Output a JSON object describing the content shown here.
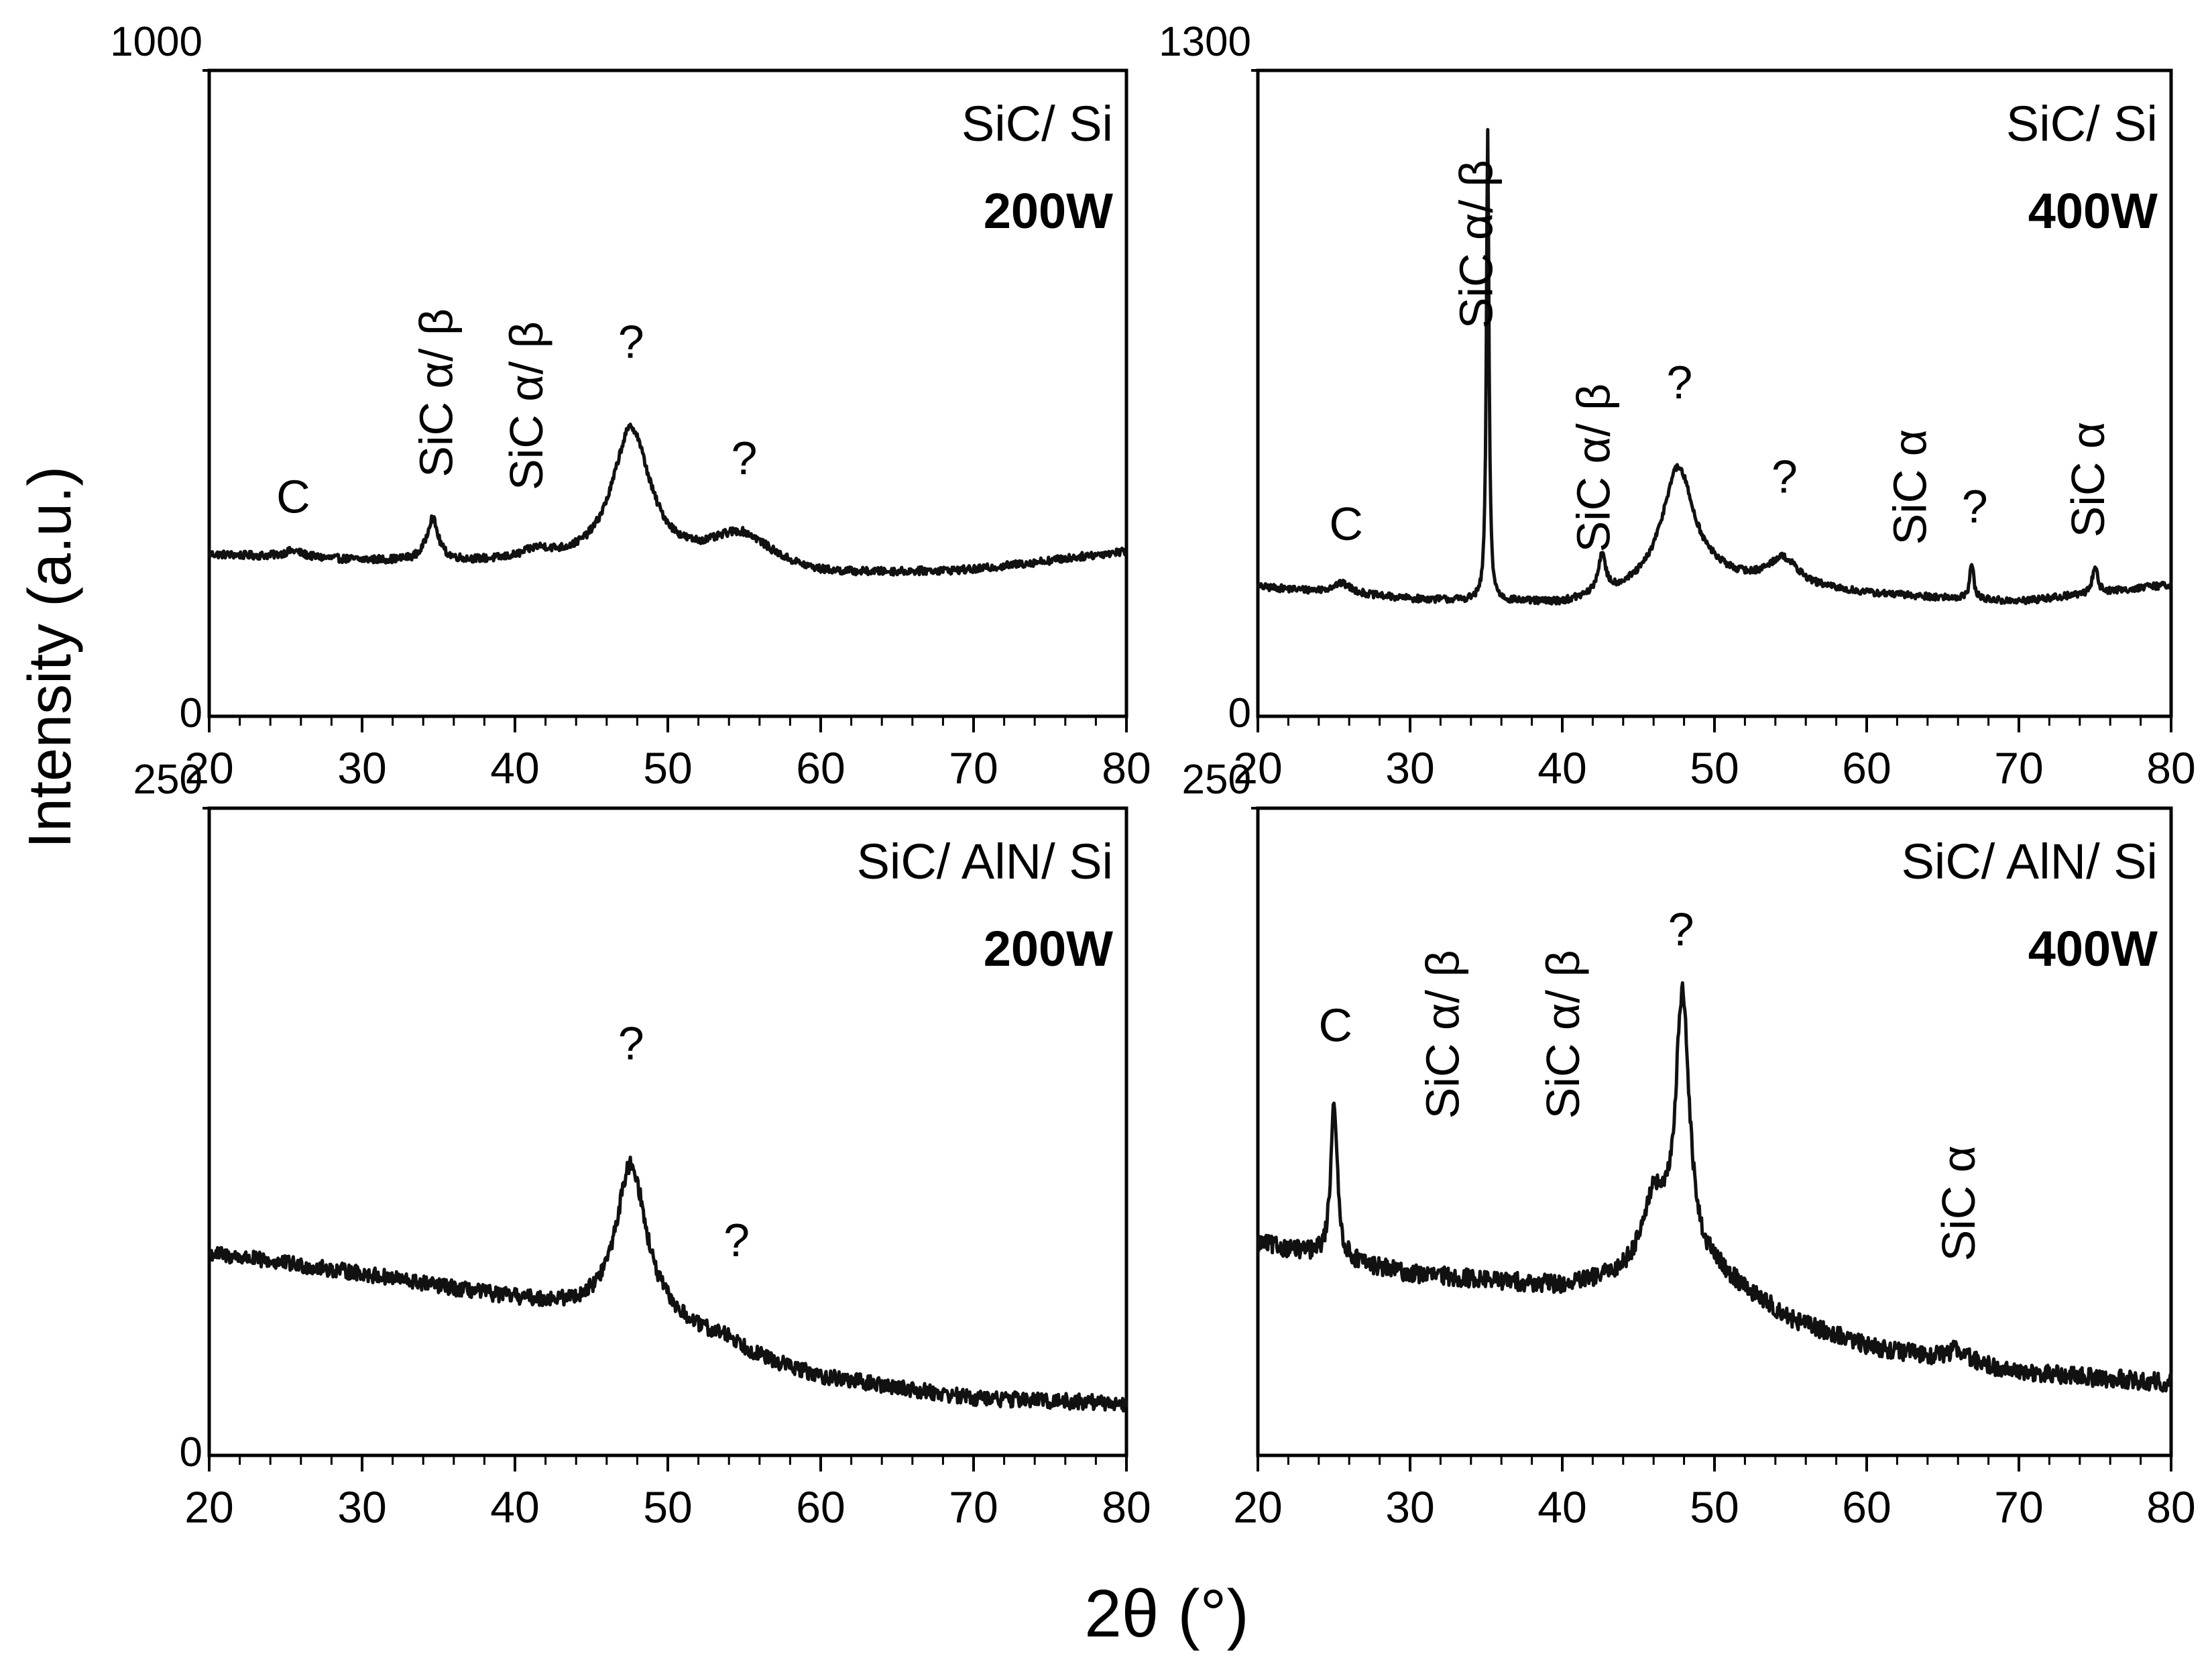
{
  "figure": {
    "ylabel": "Intensity (a.u.)",
    "xlabel": "2θ (°)"
  },
  "chart_data": [
    {
      "type": "line",
      "sample": "SiC/ Si",
      "power": "200W",
      "xlim": [
        20,
        80
      ],
      "ylim": [
        0,
        1000
      ],
      "xticks": [
        "20",
        "30",
        "40",
        "50",
        "60",
        "70",
        "80"
      ],
      "xtick_values": [
        20,
        30,
        40,
        50,
        60,
        70,
        80
      ],
      "yticks": [
        "0",
        "1000"
      ],
      "ytick_values": [
        0,
        1000
      ],
      "baseline": [
        [
          20,
          250
        ],
        [
          30,
          240
        ],
        [
          40,
          235
        ],
        [
          50,
          230
        ],
        [
          60,
          215
        ],
        [
          70,
          225
        ],
        [
          80,
          255
        ]
      ],
      "peaks": [
        [
          25.5,
          10,
          0.8
        ],
        [
          34.6,
          65,
          0.45
        ],
        [
          41.5,
          15,
          1.2
        ],
        [
          47.6,
          210,
          1.5
        ],
        [
          54.8,
          55,
          2.5
        ]
      ],
      "noise": 6,
      "annotations": [
        {
          "text": "C",
          "x": 25.5,
          "y": 315,
          "rotated": false
        },
        {
          "text": "SiC α/ β",
          "x": 34.8,
          "y": 370,
          "rotated": true
        },
        {
          "text": "SiC α/ β",
          "x": 40.7,
          "y": 350,
          "rotated": true
        },
        {
          "text": "?",
          "x": 47.6,
          "y": 555,
          "rotated": false
        },
        {
          "text": "?",
          "x": 55.0,
          "y": 375,
          "rotated": false
        }
      ],
      "label_anchor": "top-right"
    },
    {
      "type": "line",
      "sample": "SiC/ Si",
      "power": "400W",
      "xlim": [
        20,
        80
      ],
      "ylim": [
        0,
        1300
      ],
      "xticks": [
        "20",
        "30",
        "40",
        "50",
        "60",
        "70",
        "80"
      ],
      "xtick_values": [
        20,
        30,
        40,
        50,
        60,
        70,
        80
      ],
      "yticks": [
        "0",
        "1300"
      ],
      "ytick_values": [
        0,
        1300
      ],
      "baseline": [
        [
          20,
          260
        ],
        [
          30,
          235
        ],
        [
          40,
          225
        ],
        [
          50,
          270
        ],
        [
          60,
          245
        ],
        [
          70,
          230
        ],
        [
          80,
          265
        ]
      ],
      "peaks": [
        [
          25.5,
          20,
          0.8
        ],
        [
          35.1,
          950,
          0.1
        ],
        [
          42.6,
          75,
          0.3
        ],
        [
          47.6,
          240,
          1.3
        ],
        [
          54.5,
          55,
          1.2
        ],
        [
          66.9,
          75,
          0.15
        ],
        [
          75.0,
          55,
          0.2
        ]
      ],
      "noise": 7,
      "annotations": [
        {
          "text": "C",
          "x": 25.8,
          "y": 355,
          "rotated": false
        },
        {
          "text": "SiC α/ β",
          "x": 34.3,
          "y": 780,
          "rotated": true
        },
        {
          "text": "SiC α/ β",
          "x": 42.0,
          "y": 330,
          "rotated": true
        },
        {
          "text": "?",
          "x": 47.7,
          "y": 640,
          "rotated": false
        },
        {
          "text": "?",
          "x": 54.6,
          "y": 450,
          "rotated": false
        },
        {
          "text": "SiC α",
          "x": 62.8,
          "y": 345,
          "rotated": true
        },
        {
          "text": "?",
          "x": 67.1,
          "y": 390,
          "rotated": false
        },
        {
          "text": "SiC α",
          "x": 74.5,
          "y": 360,
          "rotated": true
        }
      ],
      "label_anchor": "top-right"
    },
    {
      "type": "line",
      "sample": "SiC/ AlN/ Si",
      "power": "200W",
      "xlim": [
        20,
        80
      ],
      "ylim": [
        0,
        250
      ],
      "xticks": [
        "20",
        "30",
        "40",
        "50",
        "60",
        "70",
        "80"
      ],
      "xtick_values": [
        20,
        30,
        40,
        50,
        60,
        70,
        80
      ],
      "yticks": [
        "0",
        "250"
      ],
      "ytick_values": [
        0,
        250
      ],
      "baseline": [
        [
          20,
          78
        ],
        [
          30,
          70
        ],
        [
          40,
          60
        ],
        [
          45,
          55
        ],
        [
          50,
          50
        ],
        [
          55,
          38
        ],
        [
          60,
          30
        ],
        [
          70,
          22
        ],
        [
          80,
          20
        ]
      ],
      "peaks": [
        [
          47.6,
          60,
          1.2
        ],
        [
          54.0,
          4,
          1.5
        ]
      ],
      "noise": 3,
      "annotations": [
        {
          "text": "?",
          "x": 47.6,
          "y": 153,
          "rotated": false
        },
        {
          "text": "?",
          "x": 54.5,
          "y": 77,
          "rotated": false
        }
      ],
      "label_anchor": "top-right"
    },
    {
      "type": "line",
      "sample": "SiC/ AlN/ Si",
      "power": "400W",
      "xlim": [
        20,
        80
      ],
      "ylim": [
        0,
        250
      ],
      "xticks": [
        "20",
        "30",
        "40",
        "50",
        "60",
        "70",
        "80"
      ],
      "xtick_values": [
        20,
        30,
        40,
        50,
        60,
        70,
        80
      ],
      "yticks": [
        "250"
      ],
      "ytick_values": [
        250
      ],
      "baseline": [
        [
          20,
          82
        ],
        [
          30,
          70
        ],
        [
          40,
          65
        ],
        [
          45,
          68
        ],
        [
          50,
          70
        ],
        [
          55,
          52
        ],
        [
          60,
          42
        ],
        [
          70,
          32
        ],
        [
          80,
          28
        ]
      ],
      "peaks": [
        [
          25.0,
          62,
          0.25
        ],
        [
          46.0,
          28,
          1.0
        ],
        [
          47.9,
          105,
          0.55
        ],
        [
          66.0,
          5,
          0.8
        ]
      ],
      "noise": 3.5,
      "annotations": [
        {
          "text": "C",
          "x": 25.1,
          "y": 160,
          "rotated": false
        },
        {
          "text": "SiC α/ β",
          "x": 32.1,
          "y": 130,
          "rotated": true
        },
        {
          "text": "SiC α/ β",
          "x": 40.0,
          "y": 130,
          "rotated": true
        },
        {
          "text": "?",
          "x": 47.8,
          "y": 197,
          "rotated": false
        },
        {
          "text": "SiC α",
          "x": 66.0,
          "y": 75,
          "rotated": true
        }
      ],
      "label_anchor": "top-right"
    }
  ]
}
